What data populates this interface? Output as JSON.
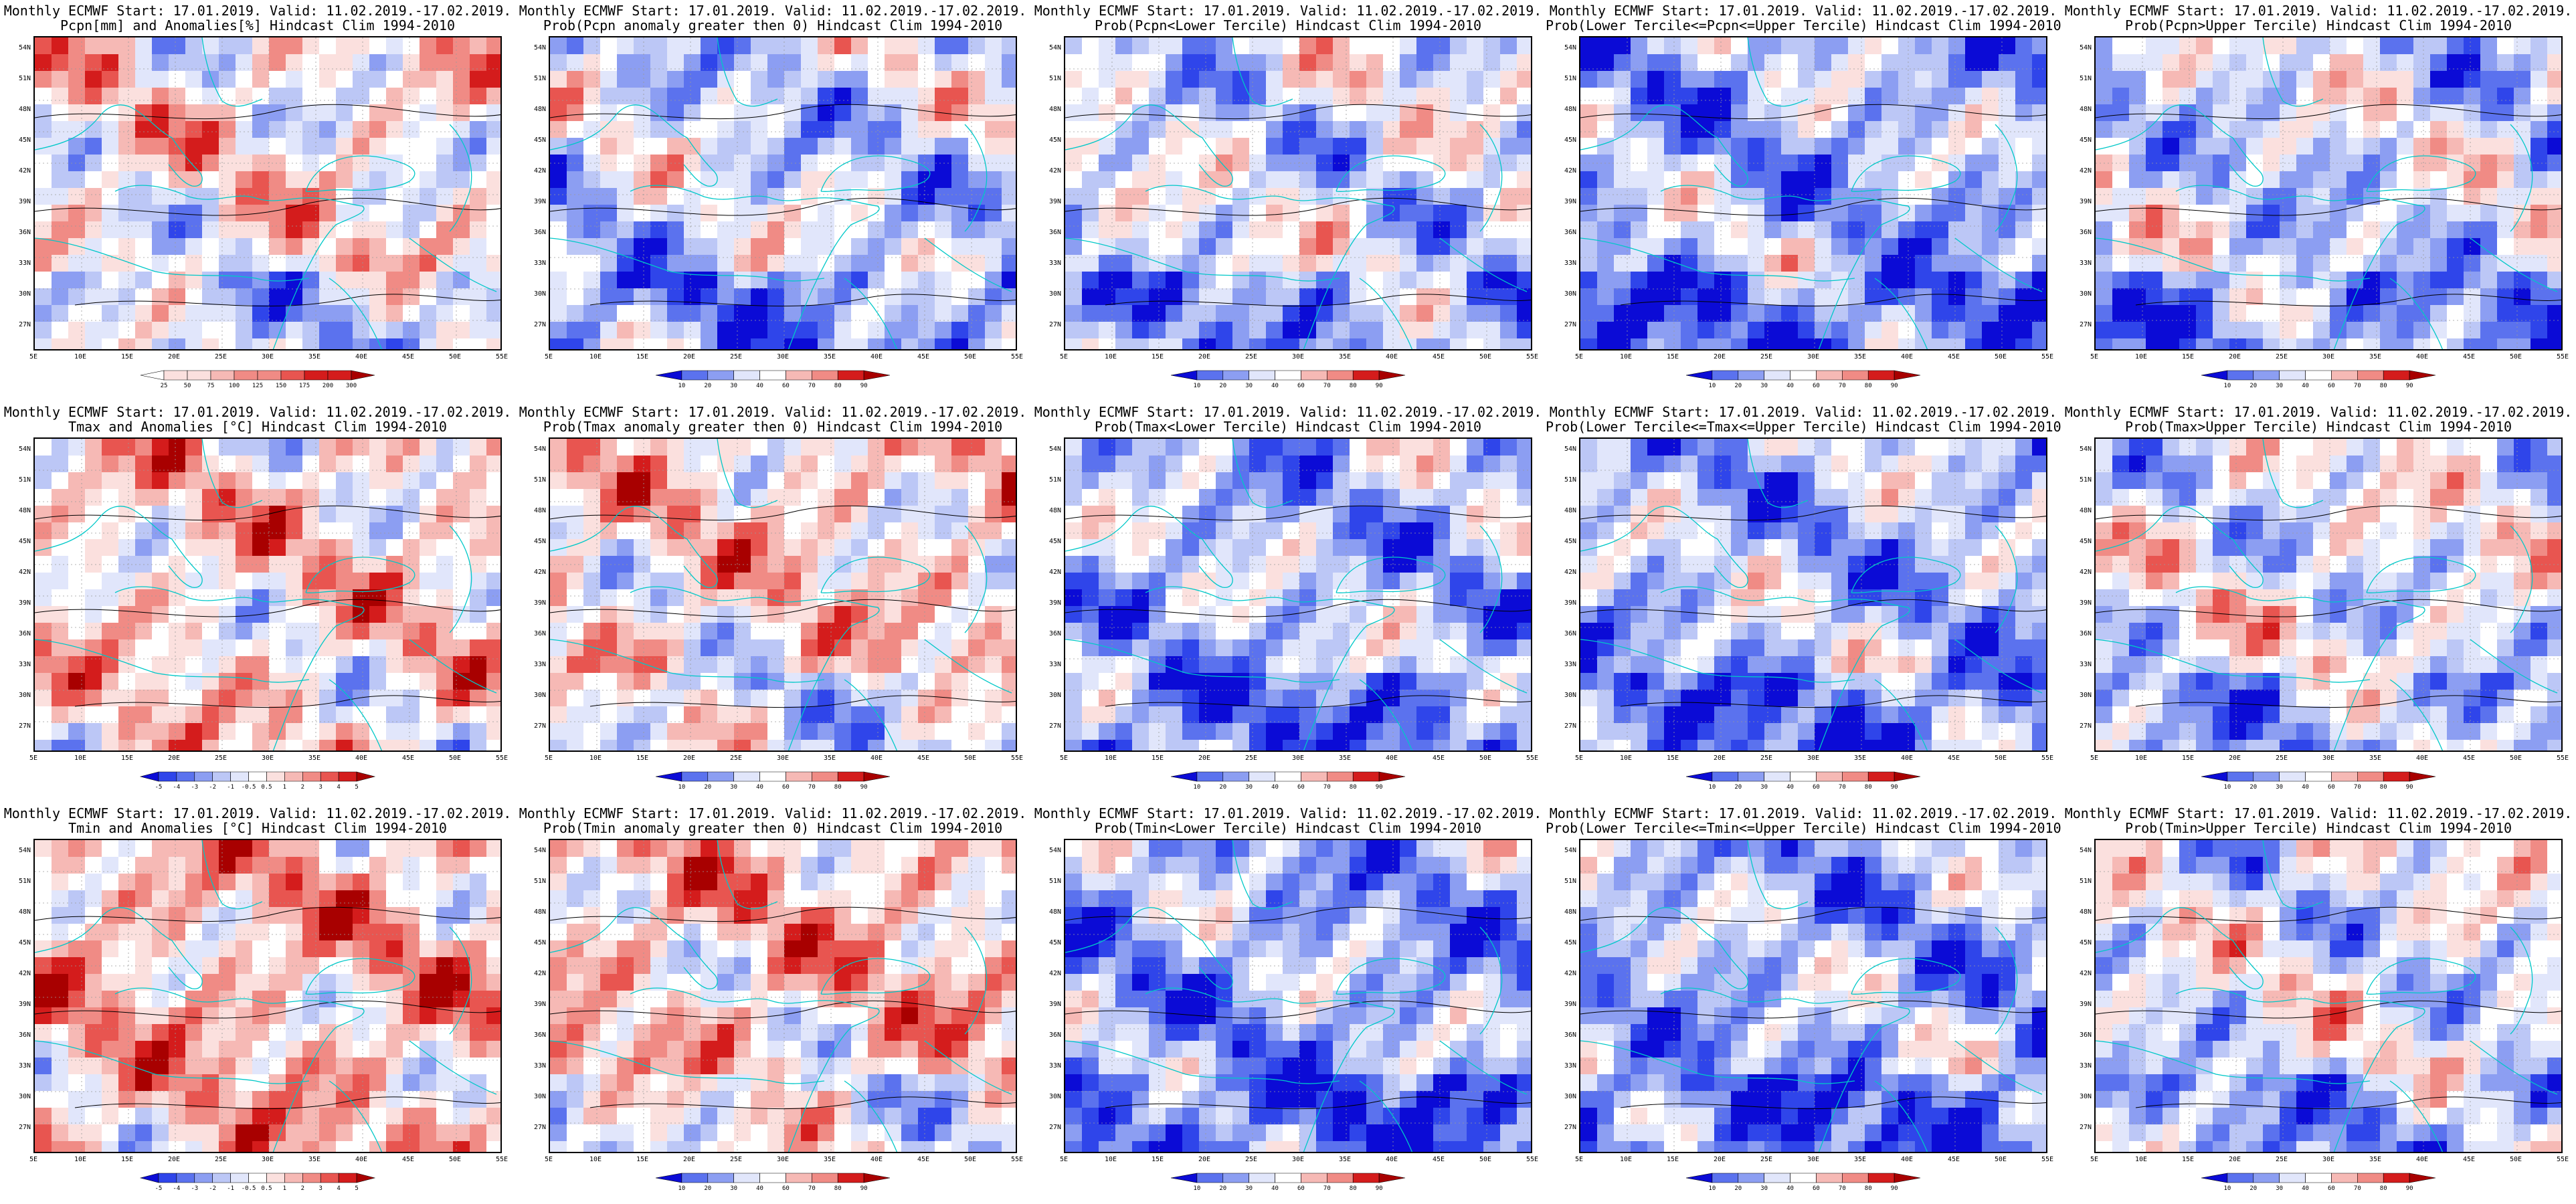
{
  "lat_ticks": [
    "54N",
    "51N",
    "48N",
    "45N",
    "42N",
    "39N",
    "36N",
    "33N",
    "30N",
    "27N"
  ],
  "lon_ticks": [
    "5E",
    "10E",
    "15E",
    "20E",
    "25E",
    "30E",
    "35E",
    "40E",
    "45E",
    "50E",
    "55E"
  ],
  "colors": {
    "blues": [
      "#0b0bd6",
      "#2f45ea",
      "#5b72ee",
      "#8c9ef2",
      "#bcc7f6",
      "#e1e6fb"
    ],
    "white": "#ffffff",
    "reds": [
      "#fbe0de",
      "#f6b9b5",
      "#f08b85",
      "#e85550",
      "#d41c1c",
      "#a80000"
    ],
    "map_line": "#00c8c8",
    "contour": "#000000"
  },
  "colorbars": {
    "pcpn_anom": [
      "25",
      "50",
      "75",
      "100",
      "125",
      "150",
      "175",
      "200",
      "300"
    ],
    "temp_anom": [
      "-5",
      "-4",
      "-3",
      "-2",
      "-1",
      "-0.5",
      "0.5",
      "1",
      "2",
      "3",
      "4",
      "5"
    ],
    "prob": [
      "10",
      "20",
      "30",
      "40",
      "60",
      "70",
      "80",
      "90"
    ]
  },
  "panels": [
    {
      "title1": "Monthly ECMWF Start: 17.01.2019. Valid: 11.02.2019.-17.02.2019.",
      "title2": "Pcpn[mm] and Anomalies[%] Hindcast Clim 1994-2010",
      "colorbar": "pcpn_anom",
      "bias": 0.1
    },
    {
      "title1": "Monthly ECMWF Start: 17.01.2019. Valid: 11.02.2019.-17.02.2019.",
      "title2": "Prob(Pcpn anomaly greater then 0) Hindcast Clim 1994-2010",
      "colorbar": "prob",
      "bias": -0.25
    },
    {
      "title1": "Monthly ECMWF Start: 17.01.2019. Valid: 11.02.2019.-17.02.2019.",
      "title2": "Prob(Pcpn<Lower Tercile) Hindcast Clim 1994-2010",
      "colorbar": "prob",
      "bias": -0.2
    },
    {
      "title1": "Monthly ECMWF Start: 17.01.2019. Valid: 11.02.2019.-17.02.2019.",
      "title2": "Prob(Lower Tercile<=Pcpn<=Upper Tercile) Hindcast Clim 1994-2010",
      "colorbar": "prob",
      "bias": -0.45
    },
    {
      "title1": "Monthly ECMWF Start: 17.01.2019. Valid: 11.02.2019.-17.02.2019.",
      "title2": "Prob(Pcpn>Upper Tercile) Hindcast Clim 1994-2010",
      "colorbar": "prob",
      "bias": -0.25
    },
    {
      "title1": "Monthly ECMWF Start: 17.01.2019. Valid: 11.02.2019.-17.02.2019.",
      "title2": "Tmax and Anomalies [°C] Hindcast Clim 1994-2010",
      "colorbar": "temp_anom",
      "bias": 0.2
    },
    {
      "title1": "Monthly ECMWF Start: 17.01.2019. Valid: 11.02.2019.-17.02.2019.",
      "title2": "Prob(Tmax anomaly greater then 0) Hindcast Clim 1994-2010",
      "colorbar": "prob",
      "bias": 0.2
    },
    {
      "title1": "Monthly ECMWF Start: 17.01.2019. Valid: 11.02.2019.-17.02.2019.",
      "title2": "Prob(Tmax<Lower Tercile) Hindcast Clim 1994-2010",
      "colorbar": "prob",
      "bias": -0.4
    },
    {
      "title1": "Monthly ECMWF Start: 17.01.2019. Valid: 11.02.2019.-17.02.2019.",
      "title2": "Prob(Lower Tercile<=Tmax<=Upper Tercile) Hindcast Clim 1994-2010",
      "colorbar": "prob",
      "bias": -0.4
    },
    {
      "title1": "Monthly ECMWF Start: 17.01.2019. Valid: 11.02.2019.-17.02.2019.",
      "title2": "Prob(Tmax>Upper Tercile) Hindcast Clim 1994-2010",
      "colorbar": "prob",
      "bias": -0.1
    },
    {
      "title1": "Monthly ECMWF Start: 17.01.2019. Valid: 11.02.2019.-17.02.2019.",
      "title2": "Tmin and Anomalies [°C] Hindcast Clim 1994-2010",
      "colorbar": "temp_anom",
      "bias": 0.35
    },
    {
      "title1": "Monthly ECMWF Start: 17.01.2019. Valid: 11.02.2019.-17.02.2019.",
      "title2": "Prob(Tmin anomaly greater then 0) Hindcast Clim 1994-2010",
      "colorbar": "prob",
      "bias": 0.3
    },
    {
      "title1": "Monthly ECMWF Start: 17.01.2019. Valid: 11.02.2019.-17.02.2019.",
      "title2": "Prob(Tmin<Lower Tercile) Hindcast Clim 1994-2010",
      "colorbar": "prob",
      "bias": -0.5
    },
    {
      "title1": "Monthly ECMWF Start: 17.01.2019. Valid: 11.02.2019.-17.02.2019.",
      "title2": "Prob(Lower Tercile<=Tmin<=Upper Tercile) Hindcast Clim 1994-2010",
      "colorbar": "prob",
      "bias": -0.45
    },
    {
      "title1": "Monthly ECMWF Start: 17.01.2019. Valid: 11.02.2019.-17.02.2019.",
      "title2": "Prob(Tmin>Upper Tercile) Hindcast Clim 1994-2010",
      "colorbar": "prob",
      "bias": -0.15
    }
  ]
}
